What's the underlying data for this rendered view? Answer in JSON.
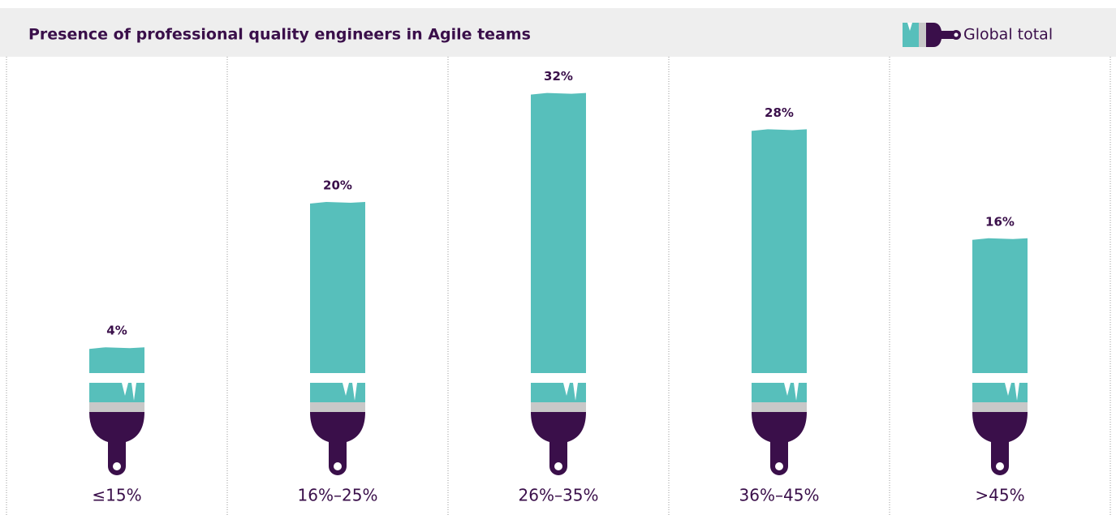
{
  "chart_data": {
    "type": "bar",
    "title": "Presence of professional quality engineers in Agile teams",
    "legend": "Global total",
    "color": "#57bfbb",
    "categories": [
      "≤15%",
      "16%–25%",
      "26%–35%",
      "36%–45%",
      ">45%"
    ],
    "values": [
      4,
      20,
      32,
      28,
      16
    ],
    "value_labels": [
      "4%",
      "20%",
      "32%",
      "28%",
      "16%"
    ]
  }
}
